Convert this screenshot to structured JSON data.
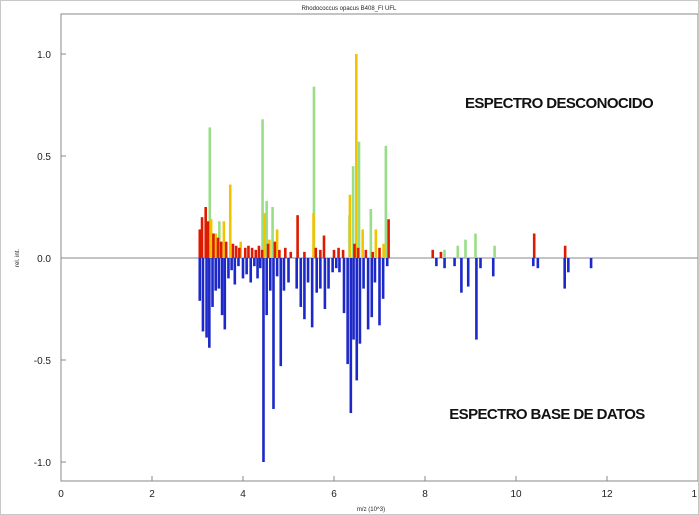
{
  "chart_data": {
    "type": "bar",
    "title": "Rhodococcus opacus B408_FI UFL",
    "xlabel": "m/z (10^3)",
    "ylabel": "rel. int.",
    "xlim": [
      0,
      14
    ],
    "ylim": [
      -1.1,
      1.1
    ],
    "x_ticks": [
      "0",
      "2",
      "4",
      "6",
      "8",
      "10",
      "12",
      "1"
    ],
    "y_ticks": [
      "1.0",
      "0.5",
      "0.0",
      "-0.5",
      "-1.0"
    ],
    "grid": false,
    "legend": "none",
    "annotations": {
      "upper": "ESPECTRO DESCONOCIDO",
      "lower": "ESPECTRO  BASE DE DATOS"
    },
    "colors": {
      "green": "#99dd88",
      "yellow": "#f2c400",
      "red": "#dd1b00",
      "blue": "#1c28c8",
      "axis": "#888888"
    },
    "series": [
      {
        "name": "",
        "color": "green",
        "x": [
          3.27,
          3.48,
          4.43,
          4.52,
          4.65,
          5.56,
          6.34,
          6.42,
          6.55,
          6.81,
          7.14,
          8.43,
          8.72,
          8.89,
          9.11,
          9.53
        ],
        "y": [
          0.64,
          0.18,
          0.68,
          0.28,
          0.25,
          0.84,
          0.21,
          0.45,
          0.57,
          0.24,
          0.55,
          0.04,
          0.06,
          0.09,
          0.12,
          0.06
        ]
      },
      {
        "name": "",
        "color": "yellow",
        "x": [
          3.3,
          3.4,
          3.58,
          3.72,
          3.95,
          4.47,
          4.58,
          4.75,
          5.55,
          6.35,
          6.49,
          6.63,
          6.92,
          7.09
        ],
        "y": [
          0.19,
          0.12,
          0.18,
          0.36,
          0.08,
          0.22,
          0.09,
          0.14,
          0.22,
          0.31,
          1.0,
          0.14,
          0.14,
          0.07
        ],
        "labels": []
      },
      {
        "name": "",
        "color": "red",
        "x": [
          3.05,
          3.1,
          3.18,
          3.23,
          3.35,
          3.45,
          3.52,
          3.63,
          3.78,
          3.85,
          3.92,
          4.05,
          4.12,
          4.2,
          4.28,
          4.35,
          4.42,
          4.55,
          4.7,
          4.8,
          4.93,
          5.05,
          5.2,
          5.35,
          5.6,
          5.7,
          5.78,
          6.0,
          6.1,
          6.2,
          6.45,
          6.53,
          6.7,
          6.85,
          7.0,
          7.2,
          8.17,
          8.35,
          10.4,
          11.08
        ],
        "y": [
          0.14,
          0.2,
          0.25,
          0.18,
          0.12,
          0.1,
          0.08,
          0.08,
          0.07,
          0.06,
          0.05,
          0.05,
          0.06,
          0.05,
          0.04,
          0.06,
          0.04,
          0.07,
          0.08,
          0.04,
          0.05,
          0.03,
          0.21,
          0.03,
          0.05,
          0.04,
          0.11,
          0.04,
          0.05,
          0.04,
          0.07,
          0.05,
          0.04,
          0.03,
          0.05,
          0.19,
          0.04,
          0.03,
          0.12,
          0.06
        ]
      },
      {
        "name": "",
        "color": "blue",
        "x": [
          3.05,
          3.12,
          3.2,
          3.26,
          3.33,
          3.4,
          3.47,
          3.54,
          3.6,
          3.68,
          3.75,
          3.82,
          3.9,
          4.0,
          4.08,
          4.17,
          4.25,
          4.32,
          4.38,
          4.45,
          4.52,
          4.6,
          4.67,
          4.75,
          4.83,
          4.9,
          5.0,
          5.18,
          5.27,
          5.35,
          5.43,
          5.52,
          5.62,
          5.7,
          5.8,
          5.88,
          5.97,
          6.05,
          6.12,
          6.22,
          6.3,
          6.37,
          6.43,
          6.5,
          6.57,
          6.65,
          6.75,
          6.83,
          6.9,
          7.0,
          7.08,
          7.17,
          8.25,
          8.43,
          8.65,
          8.8,
          8.95,
          9.13,
          9.22,
          9.5,
          10.38,
          10.48,
          11.07,
          11.15,
          11.65
        ],
        "y": [
          -0.21,
          -0.36,
          -0.39,
          -0.44,
          -0.24,
          -0.16,
          -0.15,
          -0.28,
          -0.35,
          -0.1,
          -0.06,
          -0.13,
          -0.04,
          -0.1,
          -0.08,
          -0.12,
          -0.04,
          -0.1,
          -0.05,
          -1.0,
          -0.28,
          -0.16,
          -0.74,
          -0.09,
          -0.53,
          -0.16,
          -0.12,
          -0.15,
          -0.24,
          -0.3,
          -0.12,
          -0.34,
          -0.17,
          -0.15,
          -0.25,
          -0.15,
          -0.07,
          -0.05,
          -0.07,
          -0.27,
          -0.52,
          -0.76,
          -0.4,
          -0.6,
          -0.42,
          -0.15,
          -0.35,
          -0.29,
          -0.12,
          -0.33,
          -0.2,
          -0.04,
          -0.04,
          -0.05,
          -0.04,
          -0.17,
          -0.14,
          -0.4,
          -0.05,
          -0.09,
          -0.04,
          -0.05,
          -0.15,
          -0.07,
          -0.05
        ]
      }
    ]
  }
}
